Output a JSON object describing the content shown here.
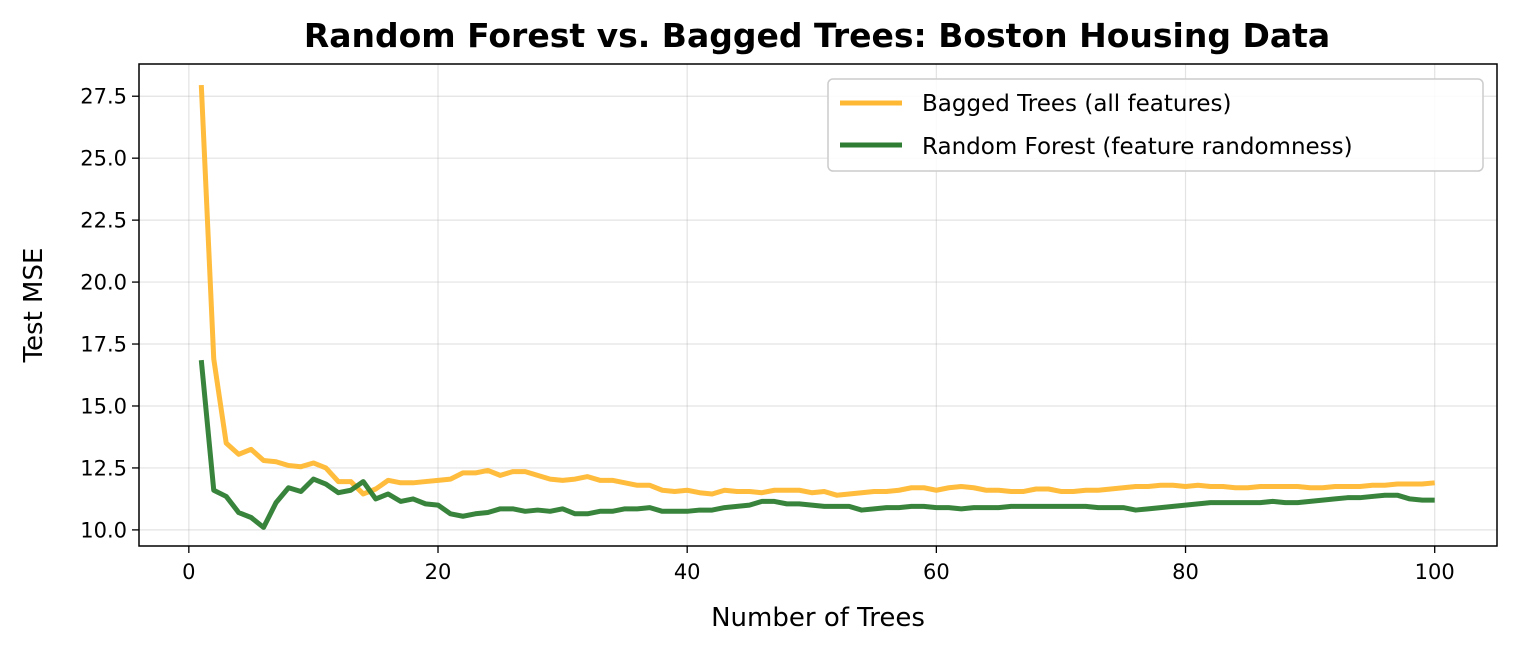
{
  "chart_data": {
    "type": "line",
    "title": "Random Forest vs. Bagged Trees: Boston Housing Data",
    "xlabel": "Number of Trees",
    "ylabel": "Test MSE",
    "xlim": [
      -4,
      105
    ],
    "ylim": [
      9.35,
      28.8
    ],
    "xticks": [
      0,
      20,
      40,
      60,
      80,
      100
    ],
    "yticks": [
      10.0,
      12.5,
      15.0,
      17.5,
      20.0,
      22.5,
      25.0,
      27.5
    ],
    "xtick_labels": [
      "0",
      "20",
      "40",
      "60",
      "80",
      "100"
    ],
    "ytick_labels": [
      "10.0",
      "12.5",
      "15.0",
      "17.5",
      "20.0",
      "22.5",
      "25.0",
      "27.5"
    ],
    "grid": true,
    "legend_position": "top-right",
    "x_start": 1,
    "series": [
      {
        "name": "Bagged Trees (all features)",
        "color": "#ffb833",
        "values": [
          27.95,
          16.9,
          13.5,
          13.05,
          13.25,
          12.8,
          12.75,
          12.6,
          12.55,
          12.7,
          12.5,
          11.95,
          11.95,
          11.45,
          11.65,
          12.0,
          11.9,
          11.9,
          11.95,
          12.0,
          12.05,
          12.3,
          12.3,
          12.4,
          12.2,
          12.35,
          12.35,
          12.2,
          12.05,
          12.0,
          12.05,
          12.15,
          12.0,
          12.0,
          11.9,
          11.8,
          11.8,
          11.6,
          11.55,
          11.6,
          11.5,
          11.45,
          11.6,
          11.55,
          11.55,
          11.5,
          11.6,
          11.6,
          11.6,
          11.5,
          11.55,
          11.4,
          11.45,
          11.5,
          11.55,
          11.55,
          11.6,
          11.7,
          11.7,
          11.6,
          11.7,
          11.75,
          11.7,
          11.6,
          11.6,
          11.55,
          11.55,
          11.65,
          11.65,
          11.55,
          11.55,
          11.6,
          11.6,
          11.65,
          11.7,
          11.75,
          11.75,
          11.8,
          11.8,
          11.75,
          11.8,
          11.75,
          11.75,
          11.7,
          11.7,
          11.75,
          11.75,
          11.75,
          11.75,
          11.7,
          11.7,
          11.75,
          11.75,
          11.75,
          11.8,
          11.8,
          11.85,
          11.85,
          11.85,
          11.9
        ]
      },
      {
        "name": "Random Forest (feature randomness)",
        "color": "#2e7d32",
        "values": [
          16.85,
          11.6,
          11.35,
          10.7,
          10.5,
          10.1,
          11.1,
          11.7,
          11.55,
          12.05,
          11.85,
          11.5,
          11.6,
          11.95,
          11.25,
          11.45,
          11.15,
          11.25,
          11.05,
          11.0,
          10.65,
          10.55,
          10.65,
          10.7,
          10.85,
          10.85,
          10.75,
          10.8,
          10.75,
          10.85,
          10.65,
          10.65,
          10.75,
          10.75,
          10.85,
          10.85,
          10.9,
          10.75,
          10.75,
          10.75,
          10.8,
          10.8,
          10.9,
          10.95,
          11.0,
          11.15,
          11.15,
          11.05,
          11.05,
          11.0,
          10.95,
          10.95,
          10.95,
          10.8,
          10.85,
          10.9,
          10.9,
          10.95,
          10.95,
          10.9,
          10.9,
          10.85,
          10.9,
          10.9,
          10.9,
          10.95,
          10.95,
          10.95,
          10.95,
          10.95,
          10.95,
          10.95,
          10.9,
          10.9,
          10.9,
          10.8,
          10.85,
          10.9,
          10.95,
          11.0,
          11.05,
          11.1,
          11.1,
          11.1,
          11.1,
          11.1,
          11.15,
          11.1,
          11.1,
          11.15,
          11.2,
          11.25,
          11.3,
          11.3,
          11.35,
          11.4,
          11.4,
          11.25,
          11.2,
          11.2
        ]
      }
    ]
  }
}
